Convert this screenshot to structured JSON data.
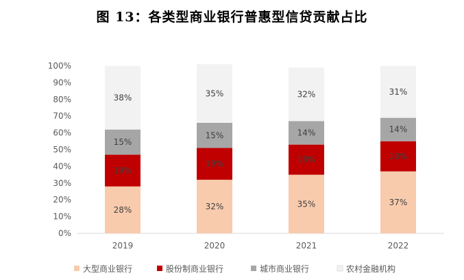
{
  "title": "图 13：各类型商业银行普惠型信贷贡献占比",
  "chart_data": {
    "type": "bar",
    "stacked": true,
    "categories": [
      "2019",
      "2020",
      "2021",
      "2022"
    ],
    "series": [
      {
        "name": "大型商业银行",
        "color": "#F8CBAD",
        "values": [
          28,
          32,
          35,
          37
        ]
      },
      {
        "name": "股份制商业银行",
        "color": "#C00000",
        "values": [
          19,
          19,
          18,
          18
        ]
      },
      {
        "name": "城市商业银行",
        "color": "#A6A6A6",
        "values": [
          15,
          15,
          14,
          14
        ]
      },
      {
        "name": "农村金融机构",
        "color": "#F2F2F2",
        "values": [
          38,
          35,
          32,
          31
        ]
      }
    ],
    "data_labels": [
      [
        "28%",
        "32%",
        "35%",
        "37%"
      ],
      [
        "19%",
        "19%",
        "18%",
        "18%"
      ],
      [
        "15%",
        "15%",
        "14%",
        "14%"
      ],
      [
        "38%",
        "35%",
        "32%",
        "31%"
      ]
    ],
    "yticks": [
      "0%",
      "10%",
      "20%",
      "30%",
      "40%",
      "50%",
      "60%",
      "70%",
      "80%",
      "90%",
      "100%"
    ],
    "ylim": [
      0,
      100
    ],
    "grid": false,
    "legend_position": "bottom"
  }
}
